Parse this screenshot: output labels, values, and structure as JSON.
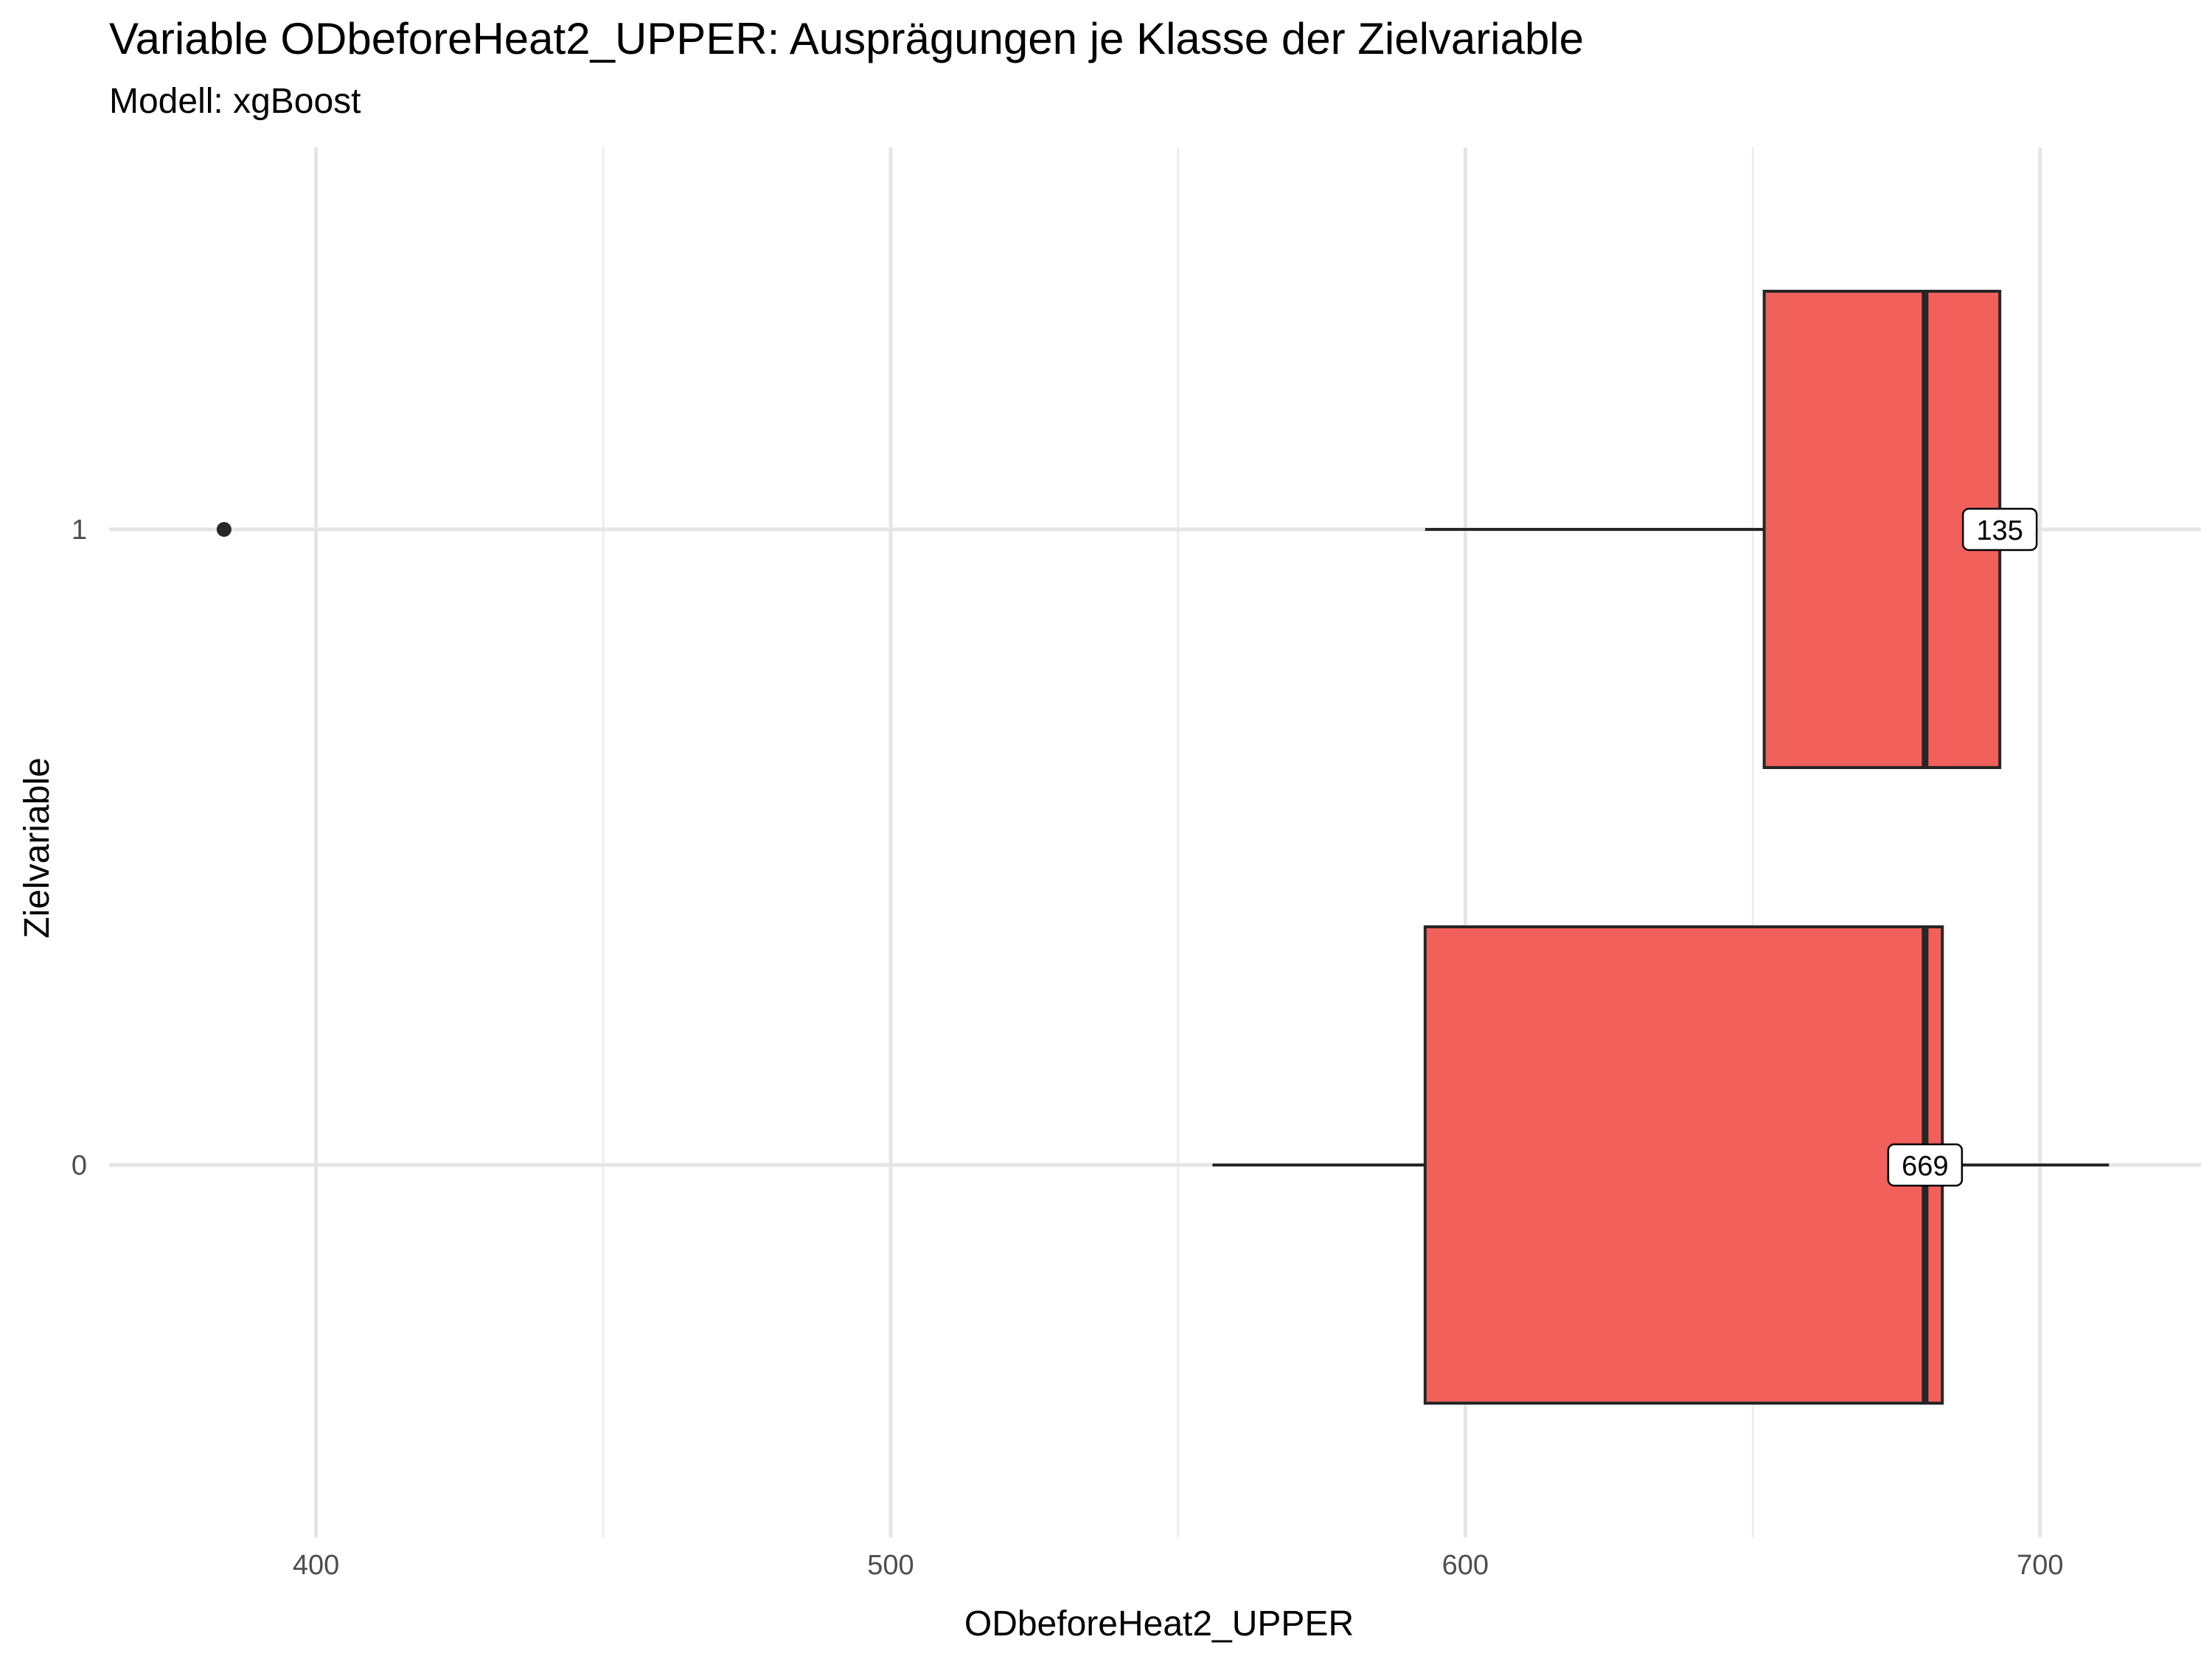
{
  "chart_data": {
    "type": "boxplot",
    "orientation": "horizontal",
    "title": "Variable ODbeforeHeat2_UPPER: Ausprägungen je Klasse der Zielvariable",
    "subtitle": "Modell: xgBoost",
    "xlabel": "ODbeforeHeat2_UPPER",
    "ylabel": "Zielvariable",
    "xlim": [
      364,
      728
    ],
    "x_ticks": [
      400,
      500,
      600,
      700
    ],
    "x_minor_ticks": [
      450,
      550,
      650
    ],
    "categories": [
      "0",
      "1"
    ],
    "boxes": [
      {
        "category": "0",
        "min": 556,
        "q1": 593,
        "median": 680,
        "q3": 683,
        "max": 712,
        "outliers": [],
        "count_label": "669"
      },
      {
        "category": "1",
        "min": 593,
        "q1": 652,
        "median": 680,
        "q3": 693,
        "max": 693,
        "outliers": [
          384
        ],
        "count_label": "135"
      }
    ],
    "fill_color": "#f2605b",
    "grid": true,
    "legend": "none"
  }
}
